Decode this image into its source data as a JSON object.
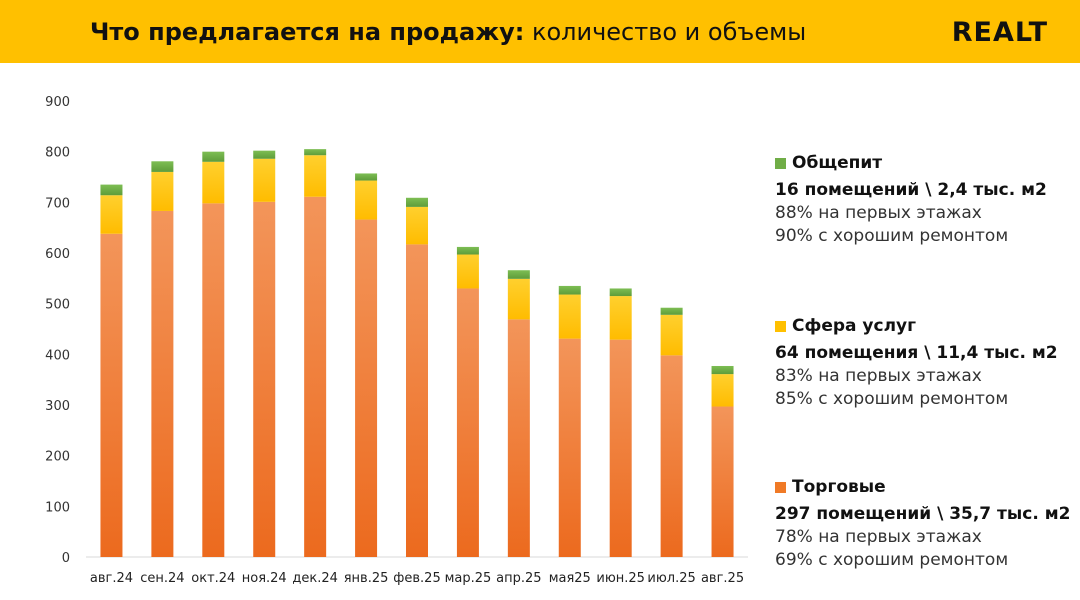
{
  "header": {
    "title_bold": "Что предлагается на продажу:",
    "title_rest": " количество и объемы",
    "logo": "REALT"
  },
  "colors": {
    "accent": "#FFC000",
    "retail": "#F07A26",
    "services": "#FFC000",
    "catering": "#70AD47"
  },
  "chart_data": {
    "type": "bar",
    "stacked": true,
    "categories": [
      "авг.24",
      "сен.24",
      "окт.24",
      "ноя.24",
      "дек.24",
      "янв.25",
      "фев.25",
      "мар.25",
      "апр.25",
      "мая25",
      "июн.25",
      "июл.25",
      "авг.25"
    ],
    "series": [
      {
        "name": "Торговые",
        "color": "#F07A26",
        "values": [
          638,
          683,
          698,
          701,
          711,
          666,
          617,
          530,
          469,
          431,
          429,
          398,
          297
        ]
      },
      {
        "name": "Сфера услуг",
        "color": "#FFC000",
        "values": [
          76,
          77,
          82,
          85,
          82,
          77,
          74,
          67,
          80,
          87,
          86,
          80,
          64
        ]
      },
      {
        "name": "Общепит",
        "color": "#70AD47",
        "values": [
          21,
          21,
          20,
          16,
          12,
          14,
          18,
          15,
          17,
          17,
          15,
          14,
          16
        ]
      }
    ],
    "ylim": [
      0,
      900
    ],
    "yticks": [
      0,
      100,
      200,
      300,
      400,
      500,
      600,
      700,
      800,
      900
    ],
    "grid": false,
    "legend": "right"
  },
  "legend": [
    {
      "name": "Общепит",
      "count": "16 помещений \\ 2,4 тыс. м2",
      "line1": "88% на первых этажах",
      "line2": "90% с хорошим ремонтом"
    },
    {
      "name": "Сфера услуг",
      "count": "64 помещения \\ 11,4 тыс. м2",
      "line1": "83% на первых этажах",
      "line2": "85% с хорошим ремонтом"
    },
    {
      "name": "Торговые",
      "count": "297 помещений \\ 35,7 тыс. м2",
      "line1": "78% на первых этажах",
      "line2": "69% с хорошим ремонтом"
    }
  ]
}
